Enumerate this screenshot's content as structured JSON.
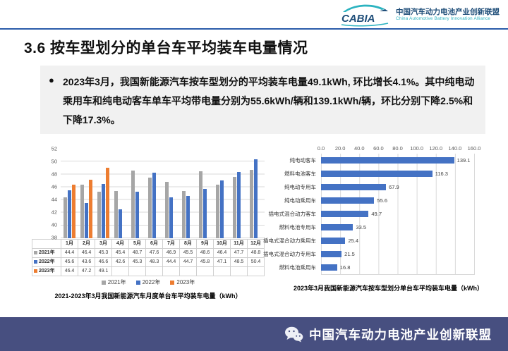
{
  "header": {
    "logo_text": "CABIA",
    "org_cn": "中国汽车动力电池产业创新联盟",
    "org_en": "China Automotive Battery Innovation Alliance"
  },
  "title": "3.6 按车型划分的单台车平均装车电量情况",
  "summary": {
    "bullet": "●",
    "text": "2023年3月，我国新能源汽车按车型划分的平均装车电量49.1kWh, 环比增长4.1%。其中纯电动乘用车和纯电动客车单车平均带电量分别为55.6kWh/辆和139.1kWh/辆，环比分别下降2.5%和下降17.3%。"
  },
  "chart_data": [
    {
      "type": "bar",
      "title": "2021-2023年3月我国新能源汽车月度单台车平均装车电量（kWh）",
      "categories": [
        "1月",
        "2月",
        "3月",
        "4月",
        "5月",
        "6月",
        "7月",
        "8月",
        "9月",
        "10月",
        "11月",
        "12月"
      ],
      "series": [
        {
          "name": "2021年",
          "color": "#a6a6a6",
          "values": [
            44.4,
            46.4,
            45.3,
            45.4,
            48.7,
            47.6,
            46.9,
            45.5,
            48.6,
            46.4,
            47.7,
            48.8
          ]
        },
        {
          "name": "2022年",
          "color": "#4472c4",
          "values": [
            45.6,
            43.6,
            46.6,
            42.6,
            45.3,
            48.3,
            44.4,
            44.7,
            45.8,
            47.1,
            48.5,
            50.4
          ]
        },
        {
          "name": "2023年",
          "color": "#ed7d31",
          "values": [
            46.4,
            47.2,
            49.1,
            null,
            null,
            null,
            null,
            null,
            null,
            null,
            null,
            null
          ]
        }
      ],
      "ylim": [
        38,
        52
      ],
      "yticks": [
        52,
        50,
        48,
        46,
        44,
        42,
        40,
        38
      ],
      "grid": true,
      "legend_position": "bottom",
      "data_table": true
    },
    {
      "type": "bar-horizontal",
      "title": "2023年3月我国新能源汽车按车型划分单台车平均装车电量（kWh）",
      "categories": [
        "纯电动客车",
        "燃料电池客车",
        "纯电动专用车",
        "纯电动乘用车",
        "插电式混合动力客车",
        "燃料电池专用车",
        "插电式混合动力乘用车",
        "插电式混合动力专用车",
        "燃料电池乘用车"
      ],
      "values": [
        139.1,
        116.3,
        67.9,
        55.6,
        49.7,
        33.5,
        25.4,
        21.5,
        16.8
      ],
      "xlim": [
        0,
        160
      ],
      "xticks": [
        "0.0",
        "20.0",
        "40.0",
        "60.0",
        "80.0",
        "100.0",
        "120.0",
        "140.0",
        "160.0"
      ],
      "bar_color": "#4472c4",
      "grid": true,
      "value_labels": true
    }
  ],
  "footer": {
    "text": "中国汽车动力电池产业创新联盟"
  },
  "colors": {
    "footer_bg": "#474f80",
    "header_rule": "#2a5caa",
    "logo_dark_blue": "#1f4e79",
    "logo_teal": "#2bb3c0",
    "summary_bg": "#f1f1f1",
    "gridline": "#d9d9d9"
  }
}
